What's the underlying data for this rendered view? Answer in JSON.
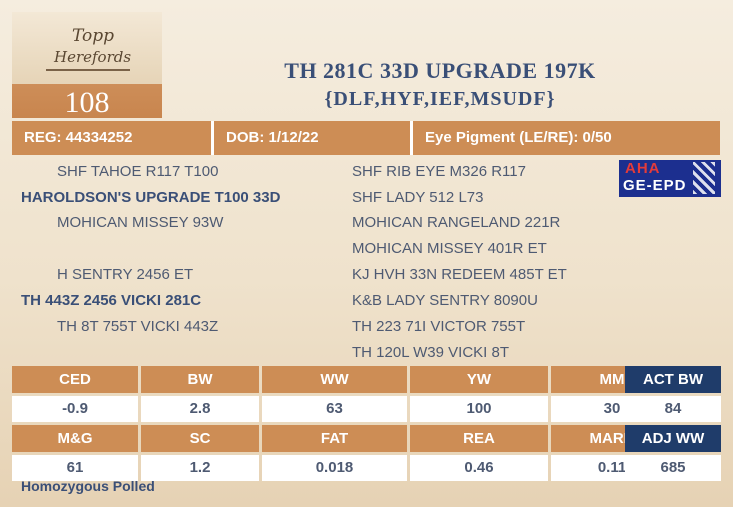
{
  "logo": {
    "line1": "Topp",
    "line2": "Herefords"
  },
  "lot_number": "108",
  "title": {
    "line1": "TH 281C 33D UPGRADE 197K",
    "line2": "{DLF,HYF,IEF,MSUDF}"
  },
  "info": {
    "reg": "REG: 44334252",
    "dob": "DOB: 1/12/22",
    "eye_pigment": "Eye Pigment (LE/RE): 0/50"
  },
  "pedigree": {
    "sire": "HAROLDSON'S UPGRADE T100 33D",
    "sire_sire": "SHF TAHOE R117 T100",
    "sire_dam": "MOHICAN MISSEY 93W",
    "sire_sire_sire": "SHF RIB EYE M326 R117",
    "sire_sire_dam": "SHF LADY 512 L73",
    "sire_dam_sire": "MOHICAN RANGELAND 221R",
    "sire_dam_dam": "MOHICAN MISSEY 401R ET",
    "dam": "TH 443Z 2456 VICKI 281C",
    "dam_sire": "H SENTRY 2456 ET",
    "dam_dam": "TH 8T 755T VICKI 443Z",
    "dam_sire_sire": "KJ HVH 33N REDEEM 485T ET",
    "dam_sire_dam": "K&B LADY SENTRY 8090U",
    "dam_dam_sire": "TH 223 71I VICTOR 755T",
    "dam_dam_dam": "TH 120L W39 VICKI 8T"
  },
  "badge": {
    "line1": "AHA",
    "line2": "GE-EPD"
  },
  "epd": {
    "row1_headers": [
      "CED",
      "BW",
      "WW",
      "YW",
      "MM"
    ],
    "row1_values": [
      "-0.9",
      "2.8",
      "63",
      "100",
      "30"
    ],
    "row2_headers": [
      "M&G",
      "SC",
      "FAT",
      "REA",
      "MARB"
    ],
    "row2_values": [
      "61",
      "1.2",
      "0.018",
      "0.46",
      "0.11"
    ]
  },
  "actual": {
    "act_bw_label": "ACT BW",
    "act_bw_value": "84",
    "adj_ww_label": "ADJ WW",
    "adj_ww_value": "685"
  },
  "footer": "Homozygous Polled",
  "colors": {
    "header_tan": "#cd8d55",
    "navy_text": "#3a4f77",
    "navy_header": "#1f3c6a"
  }
}
